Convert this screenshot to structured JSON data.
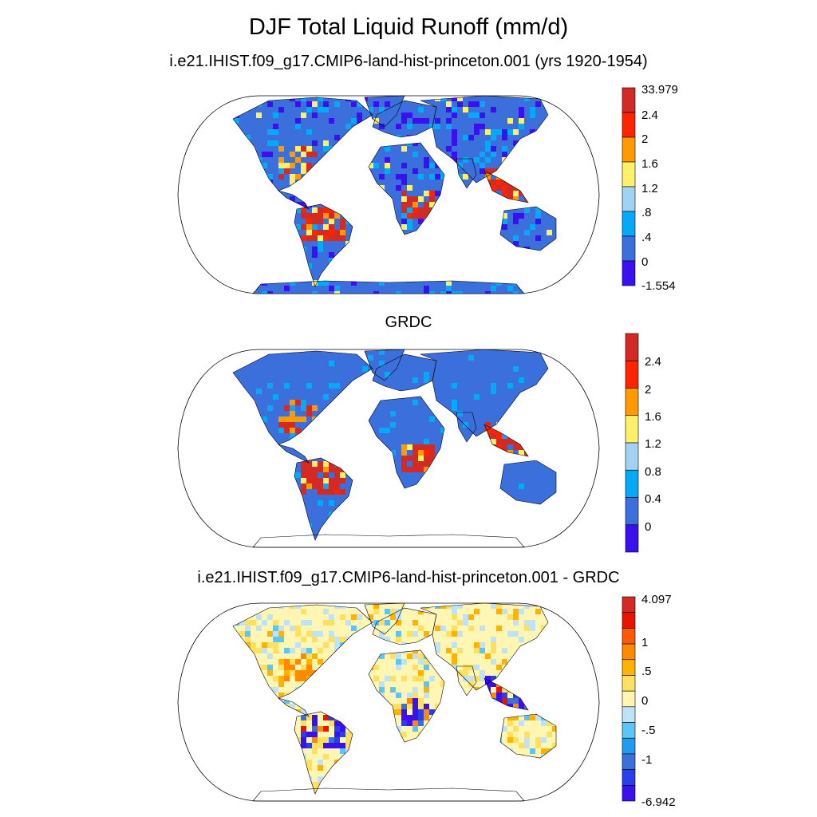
{
  "title": "DJF Total Liquid Runoff (mm/d)",
  "panels": [
    {
      "id": "model",
      "subtitle": "i.e21.IHIST.f09_g17.CMIP6-land-hist-princeton.001 (yrs 1920-1954)",
      "colorbar": {
        "colors": [
          "#3a10ef",
          "#3b6fdc",
          "#06a9f7",
          "#9fd3f1",
          "#fff06a",
          "#ff9a00",
          "#ff2400",
          "#d32a24"
        ],
        "labels": [
          "33.979",
          "2.4",
          "2",
          "1.6",
          "1.2",
          ".8",
          ".4",
          "0",
          "-1.554"
        ]
      }
    },
    {
      "id": "grdc",
      "subtitle": "GRDC",
      "colorbar": {
        "colors": [
          "#3a10ef",
          "#3b6fdc",
          "#06a9f7",
          "#9fd3f1",
          "#fff06a",
          "#ff9a00",
          "#ff2400",
          "#d32a24"
        ],
        "labels": [
          "2.4",
          "2",
          "1.6",
          "1.2",
          "0.8",
          "0.4",
          "0"
        ]
      }
    },
    {
      "id": "diff",
      "subtitle": "i.e21.IHIST.f09_g17.CMIP6-land-hist-princeton.001 - GRDC",
      "colorbar": {
        "colors": [
          "#3a10ef",
          "#2b3fe8",
          "#3b6fdc",
          "#1f9cf0",
          "#5dc5f5",
          "#bfe3f5",
          "#fff6b4",
          "#ffe060",
          "#ffb300",
          "#ff8a00",
          "#ff5a00",
          "#e81400",
          "#d32a24"
        ],
        "labels": [
          "4.097",
          "1",
          ".5",
          "0",
          "-.5",
          "-1",
          "-6.942"
        ]
      }
    }
  ]
}
